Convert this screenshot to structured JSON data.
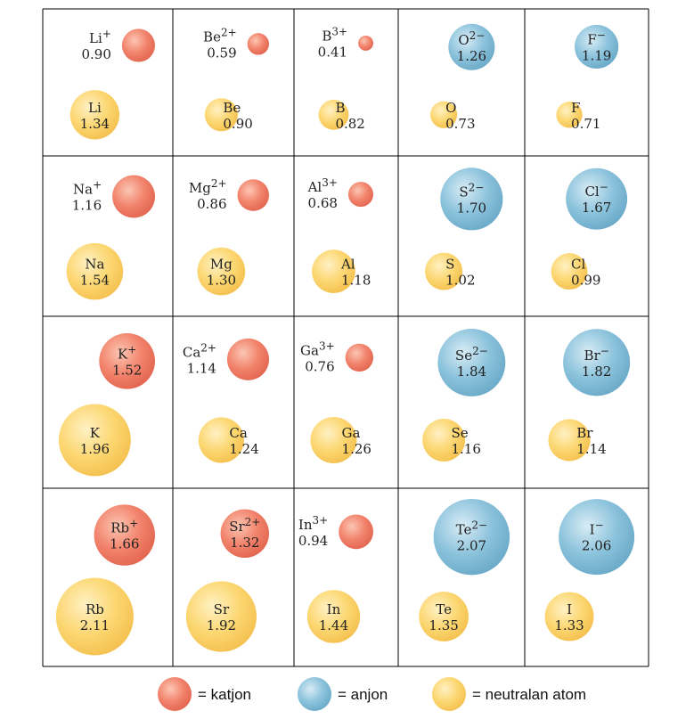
{
  "columns": 5,
  "rows": [
    [
      {
        "ion": {
          "label": "Li",
          "charge": "+",
          "radius": "0.90",
          "type": "cation"
        },
        "atom": {
          "label": "Li",
          "radius": "1.34"
        }
      },
      {
        "ion": {
          "label": "Be",
          "charge": "2+",
          "radius": "0.59",
          "type": "cation"
        },
        "atom": {
          "label": "Be",
          "radius": "0.90"
        }
      },
      {
        "ion": {
          "label": "B",
          "charge": "3+",
          "radius": "0.41",
          "type": "cation"
        },
        "atom": {
          "label": "B",
          "radius": "0.82"
        }
      },
      {
        "ion": {
          "label": "O",
          "charge": "2−",
          "radius": "1.26",
          "type": "anion"
        },
        "atom": {
          "label": "O",
          "radius": "0.73"
        }
      },
      {
        "ion": {
          "label": "F",
          "charge": "−",
          "radius": "1.19",
          "type": "anion"
        },
        "atom": {
          "label": "F",
          "radius": "0.71"
        }
      }
    ],
    [
      {
        "ion": {
          "label": "Na",
          "charge": "+",
          "radius": "1.16",
          "type": "cation"
        },
        "atom": {
          "label": "Na",
          "radius": "1.54"
        }
      },
      {
        "ion": {
          "label": "Mg",
          "charge": "2+",
          "radius": "0.86",
          "type": "cation"
        },
        "atom": {
          "label": "Mg",
          "radius": "1.30"
        }
      },
      {
        "ion": {
          "label": "Al",
          "charge": "3+",
          "radius": "0.68",
          "type": "cation"
        },
        "atom": {
          "label": "Al",
          "radius": "1.18"
        }
      },
      {
        "ion": {
          "label": "S",
          "charge": "2−",
          "radius": "1.70",
          "type": "anion"
        },
        "atom": {
          "label": "S",
          "radius": "1.02"
        }
      },
      {
        "ion": {
          "label": "Cl",
          "charge": "−",
          "radius": "1.67",
          "type": "anion"
        },
        "atom": {
          "label": "Cl",
          "radius": "0.99"
        }
      }
    ],
    [
      {
        "ion": {
          "label": "K",
          "charge": "+",
          "radius": "1.52",
          "type": "cation"
        },
        "atom": {
          "label": "K",
          "radius": "1.96"
        }
      },
      {
        "ion": {
          "label": "Ca",
          "charge": "2+",
          "radius": "1.14",
          "type": "cation"
        },
        "atom": {
          "label": "Ca",
          "radius": "1.24"
        }
      },
      {
        "ion": {
          "label": "Ga",
          "charge": "3+",
          "radius": "0.76",
          "type": "cation"
        },
        "atom": {
          "label": "Ga",
          "radius": "1.26"
        }
      },
      {
        "ion": {
          "label": "Se",
          "charge": "2−",
          "radius": "1.84",
          "type": "anion"
        },
        "atom": {
          "label": "Se",
          "radius": "1.16"
        }
      },
      {
        "ion": {
          "label": "Br",
          "charge": "−",
          "radius": "1.82",
          "type": "anion"
        },
        "atom": {
          "label": "Br",
          "radius": "1.14"
        }
      }
    ],
    [
      {
        "ion": {
          "label": "Rb",
          "charge": "+",
          "radius": "1.66",
          "type": "cation"
        },
        "atom": {
          "label": "Rb",
          "radius": "2.11"
        }
      },
      {
        "ion": {
          "label": "Sr",
          "charge": "2+",
          "radius": "1.32",
          "type": "cation"
        },
        "atom": {
          "label": "Sr",
          "radius": "1.92"
        }
      },
      {
        "ion": {
          "label": "In",
          "charge": "3+",
          "radius": "0.94",
          "type": "cation"
        },
        "atom": {
          "label": "In",
          "radius": "1.44"
        }
      },
      {
        "ion": {
          "label": "Te",
          "charge": "2−",
          "radius": "2.07",
          "type": "anion"
        },
        "atom": {
          "label": "Te",
          "radius": "1.35"
        }
      },
      {
        "ion": {
          "label": "I",
          "charge": "−",
          "radius": "2.06",
          "type": "anion"
        },
        "atom": {
          "label": "I",
          "radius": "1.33"
        }
      }
    ]
  ],
  "legend": {
    "cation": "=  katjon",
    "anion": "= anjon",
    "neutral": "=  neutralan atom"
  },
  "colors": {
    "cation_light": "#fbc6b3",
    "cation_mid": "#f2836c",
    "cation_dark": "#e2654f",
    "anion_light": "#d8ecf5",
    "anion_mid": "#8cc3dc",
    "anion_dark": "#69a9c8",
    "neutral_light": "#fff1c4",
    "neutral_mid": "#fcd772",
    "neutral_dark": "#f4c04e",
    "grid": "#000000"
  }
}
